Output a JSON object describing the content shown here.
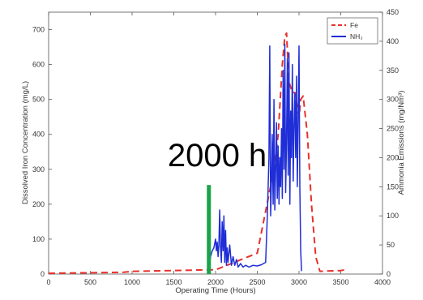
{
  "chart_data": {
    "type": "line",
    "xlabel": "Operating Time (Hours)",
    "ylabel_left": "Dissolved Iron Concentration (mg/L)",
    "ylabel_right": "Ammonia Emissions (mg/Nm³)",
    "xlim": [
      0,
      4000
    ],
    "ylim_left": [
      0,
      750
    ],
    "ylim_right": [
      0,
      450
    ],
    "x_ticks": [
      0,
      500,
      1000,
      1500,
      2000,
      2500,
      3000,
      3500,
      4000
    ],
    "y_ticks_left": [
      0,
      100,
      200,
      300,
      400,
      500,
      600,
      700
    ],
    "y_ticks_right": [
      0,
      50,
      100,
      150,
      200,
      250,
      300,
      350,
      400,
      450
    ],
    "grid": false,
    "legend_position": "top-right",
    "annotation": {
      "text": "2000 h",
      "x": 2000,
      "marker_color": "#1aa34a",
      "marker_top_left": 255
    },
    "series": [
      {
        "name": "Fe",
        "axis": "left",
        "style": "dashed",
        "color": "#e8312b",
        "x": [
          0,
          900,
          1000,
          1500,
          1900,
          2000,
          2500,
          2600,
          2700,
          2750,
          2800,
          2830,
          2850,
          2880,
          2920,
          2950,
          3000,
          3020,
          3050,
          3100,
          3150,
          3200,
          3250,
          3500,
          3550
        ],
        "y": [
          2,
          5,
          8,
          10,
          12,
          12,
          60,
          180,
          300,
          400,
          600,
          680,
          690,
          550,
          520,
          520,
          450,
          500,
          510,
          400,
          200,
          50,
          8,
          10,
          12
        ]
      },
      {
        "name": "NH₃",
        "axis": "right",
        "style": "solid",
        "color": "#1f2ed6",
        "x": [
          1920,
          1940,
          1960,
          1980,
          2000,
          2010,
          2020,
          2030,
          2040,
          2050,
          2060,
          2070,
          2080,
          2090,
          2100,
          2110,
          2120,
          2130,
          2140,
          2150,
          2170,
          2190,
          2210,
          2230,
          2250,
          2270,
          2300,
          2330,
          2360,
          2400,
          2450,
          2500,
          2550,
          2600,
          2620,
          2640,
          2650,
          2660,
          2670,
          2680,
          2690,
          2700,
          2710,
          2720,
          2730,
          2740,
          2750,
          2760,
          2770,
          2780,
          2790,
          2800,
          2810,
          2820,
          2830,
          2840,
          2850,
          2860,
          2870,
          2880,
          2890,
          2900,
          2910,
          2920,
          2930,
          2940,
          2950,
          2960,
          2970,
          2980,
          2990,
          3000,
          3010,
          3020,
          3030
        ],
        "y": [
          5,
          30,
          40,
          45,
          60,
          40,
          55,
          30,
          50,
          110,
          45,
          20,
          90,
          40,
          100,
          20,
          75,
          15,
          45,
          20,
          50,
          15,
          30,
          15,
          25,
          12,
          18,
          12,
          15,
          12,
          15,
          14,
          16,
          20,
          100,
          200,
          392,
          100,
          160,
          240,
          120,
          300,
          110,
          180,
          260,
          130,
          220,
          120,
          200,
          150,
          250,
          130,
          350,
          180,
          395,
          140,
          230,
          370,
          170,
          380,
          120,
          280,
          200,
          360,
          160,
          250,
          310,
          200,
          340,
          150,
          270,
          392,
          150,
          40,
          5
        ]
      }
    ]
  }
}
